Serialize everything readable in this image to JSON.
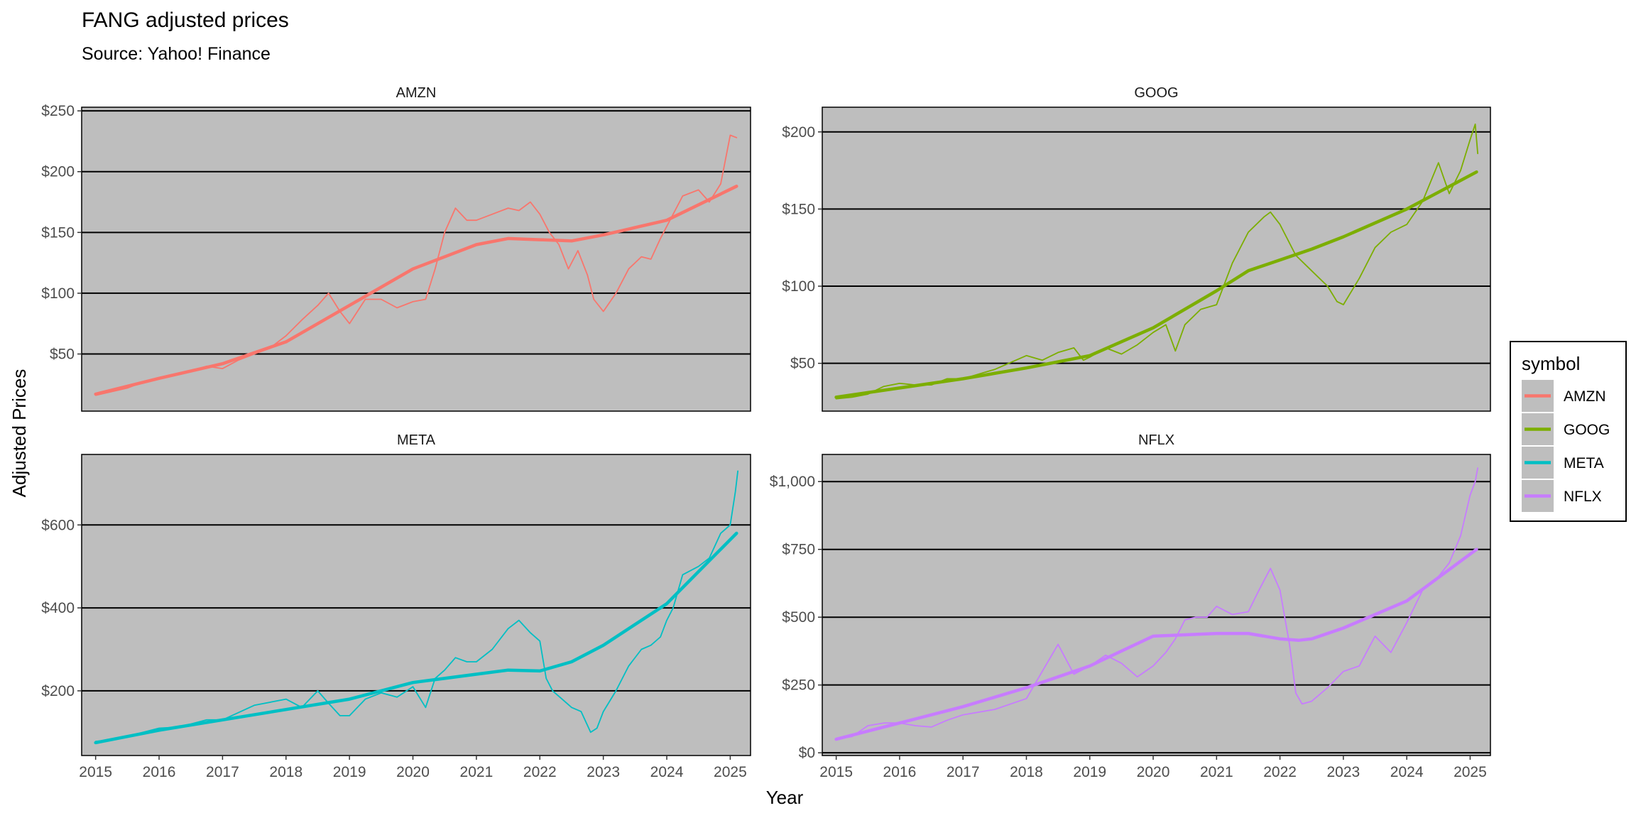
{
  "title": "FANG adjusted prices",
  "subtitle": "Source: Yahoo! Finance",
  "xlabel": "Year",
  "ylabel": "Adjusted Prices",
  "legend": {
    "title": "symbol",
    "placement": "right",
    "items": [
      {
        "label": "AMZN",
        "color": "#F8766D"
      },
      {
        "label": "GOOG",
        "color": "#7CAE00"
      },
      {
        "label": "META",
        "color": "#00BFC4"
      },
      {
        "label": "NFLX",
        "color": "#C77CFF"
      }
    ]
  },
  "colors": {
    "panel_bg": "#BEBEBE",
    "grid": "#000000"
  },
  "chart_data": [
    {
      "type": "line",
      "facet": "AMZN",
      "color": "#F8766D",
      "xlim": [
        2014.78,
        2025.32
      ],
      "ylim": [
        3,
        253
      ],
      "yticks": [
        50,
        100,
        150,
        200,
        250
      ],
      "ytick_labels": [
        "$50",
        "$100",
        "$150",
        "$200",
        "$250"
      ],
      "xticks": [
        2015,
        2016,
        2017,
        2018,
        2019,
        2020,
        2021,
        2022,
        2023,
        2024,
        2025
      ],
      "xtick_labels": [
        "2015",
        "2016",
        "2017",
        "2018",
        "2019",
        "2020",
        "2021",
        "2022",
        "2023",
        "2024",
        "2025"
      ],
      "show_x_axis": false,
      "series": [
        {
          "kind": "price",
          "x": [
            2015.0,
            2015.25,
            2015.5,
            2015.75,
            2016.0,
            2016.25,
            2016.5,
            2016.75,
            2017.0,
            2017.25,
            2017.5,
            2017.75,
            2018.0,
            2018.25,
            2018.5,
            2018.67,
            2018.85,
            2019.0,
            2019.25,
            2019.5,
            2019.75,
            2020.0,
            2020.2,
            2020.35,
            2020.5,
            2020.67,
            2020.85,
            2021.0,
            2021.25,
            2021.5,
            2021.67,
            2021.85,
            2022.0,
            2022.15,
            2022.3,
            2022.45,
            2022.6,
            2022.75,
            2022.85,
            2023.0,
            2023.2,
            2023.4,
            2023.6,
            2023.75,
            2023.9,
            2024.0,
            2024.25,
            2024.5,
            2024.67,
            2024.85,
            2025.0,
            2025.1
          ],
          "y": [
            16,
            19,
            22,
            27,
            30,
            33,
            36,
            40,
            38,
            45,
            50,
            55,
            65,
            78,
            90,
            100,
            85,
            75,
            95,
            95,
            88,
            93,
            95,
            120,
            150,
            170,
            160,
            160,
            165,
            170,
            168,
            175,
            165,
            150,
            140,
            120,
            135,
            115,
            95,
            85,
            100,
            120,
            130,
            128,
            145,
            155,
            180,
            185,
            175,
            190,
            230,
            228
          ]
        },
        {
          "kind": "trend",
          "x": [
            2015.0,
            2016.0,
            2017.0,
            2018.0,
            2019.0,
            2020.0,
            2021.0,
            2021.5,
            2022.0,
            2022.5,
            2023.0,
            2024.0,
            2025.1
          ],
          "y": [
            17,
            30,
            42,
            60,
            90,
            120,
            140,
            145,
            144,
            143,
            148,
            160,
            188
          ]
        }
      ]
    },
    {
      "type": "line",
      "facet": "GOOG",
      "color": "#7CAE00",
      "xlim": [
        2014.78,
        2025.32
      ],
      "ylim": [
        19,
        216
      ],
      "yticks": [
        50,
        100,
        150,
        200
      ],
      "ytick_labels": [
        "$50",
        "$100",
        "$150",
        "$200"
      ],
      "xticks": [
        2015,
        2016,
        2017,
        2018,
        2019,
        2020,
        2021,
        2022,
        2023,
        2024,
        2025
      ],
      "xtick_labels": [
        "2015",
        "2016",
        "2017",
        "2018",
        "2019",
        "2020",
        "2021",
        "2022",
        "2023",
        "2024",
        "2025"
      ],
      "show_x_axis": false,
      "series": [
        {
          "kind": "price",
          "x": [
            2015.0,
            2015.25,
            2015.5,
            2015.75,
            2016.0,
            2016.25,
            2016.5,
            2016.75,
            2017.0,
            2017.5,
            2018.0,
            2018.25,
            2018.5,
            2018.75,
            2018.9,
            2019.0,
            2019.25,
            2019.5,
            2019.75,
            2020.0,
            2020.2,
            2020.35,
            2020.5,
            2020.75,
            2021.0,
            2021.25,
            2021.5,
            2021.75,
            2021.85,
            2022.0,
            2022.25,
            2022.5,
            2022.75,
            2022.9,
            2023.0,
            2023.25,
            2023.5,
            2023.75,
            2024.0,
            2024.25,
            2024.5,
            2024.67,
            2024.85,
            2025.0,
            2025.08,
            2025.12
          ],
          "y": [
            27,
            28,
            30,
            35,
            37,
            36,
            36,
            40,
            40,
            46,
            55,
            52,
            57,
            60,
            52,
            54,
            60,
            56,
            62,
            70,
            75,
            58,
            75,
            85,
            88,
            115,
            135,
            145,
            148,
            140,
            120,
            110,
            100,
            90,
            88,
            105,
            125,
            135,
            140,
            155,
            180,
            160,
            175,
            195,
            205,
            186
          ]
        },
        {
          "kind": "trend",
          "x": [
            2015.0,
            2016.0,
            2017.0,
            2018.0,
            2019.0,
            2020.0,
            2021.0,
            2021.5,
            2022.0,
            2022.5,
            2023.0,
            2024.0,
            2025.1
          ],
          "y": [
            28,
            34,
            40,
            47,
            55,
            73,
            97,
            110,
            117,
            124,
            132,
            150,
            174
          ]
        }
      ]
    },
    {
      "type": "line",
      "facet": "META",
      "color": "#00BFC4",
      "xlim": [
        2014.78,
        2025.32
      ],
      "ylim": [
        44,
        770
      ],
      "yticks": [
        200,
        400,
        600
      ],
      "ytick_labels": [
        "$200",
        "$400",
        "$600"
      ],
      "xticks": [
        2015,
        2016,
        2017,
        2018,
        2019,
        2020,
        2021,
        2022,
        2023,
        2024,
        2025
      ],
      "xtick_labels": [
        "2015",
        "2016",
        "2017",
        "2018",
        "2019",
        "2020",
        "2021",
        "2022",
        "2023",
        "2024",
        "2025"
      ],
      "show_x_axis": true,
      "series": [
        {
          "kind": "price",
          "x": [
            2015.0,
            2015.25,
            2015.5,
            2015.75,
            2016.0,
            2016.25,
            2016.5,
            2016.75,
            2017.0,
            2017.5,
            2018.0,
            2018.25,
            2018.5,
            2018.67,
            2018.85,
            2019.0,
            2019.25,
            2019.5,
            2019.75,
            2020.0,
            2020.2,
            2020.35,
            2020.5,
            2020.67,
            2020.85,
            2021.0,
            2021.25,
            2021.5,
            2021.67,
            2021.85,
            2022.0,
            2022.1,
            2022.2,
            2022.35,
            2022.5,
            2022.65,
            2022.8,
            2022.9,
            2023.0,
            2023.2,
            2023.4,
            2023.6,
            2023.75,
            2023.9,
            2024.0,
            2024.1,
            2024.25,
            2024.5,
            2024.67,
            2024.85,
            2025.0,
            2025.08,
            2025.12
          ],
          "y": [
            78,
            82,
            90,
            100,
            110,
            112,
            120,
            130,
            130,
            165,
            180,
            160,
            200,
            170,
            140,
            140,
            180,
            195,
            185,
            210,
            160,
            230,
            250,
            280,
            270,
            270,
            300,
            350,
            370,
            340,
            320,
            230,
            200,
            180,
            160,
            150,
            100,
            110,
            150,
            200,
            260,
            300,
            310,
            330,
            370,
            400,
            480,
            500,
            520,
            580,
            600,
            680,
            730
          ]
        },
        {
          "kind": "trend",
          "x": [
            2015.0,
            2016.0,
            2017.0,
            2018.0,
            2019.0,
            2020.0,
            2021.0,
            2021.5,
            2022.0,
            2022.5,
            2023.0,
            2024.0,
            2025.1
          ],
          "y": [
            75,
            105,
            130,
            155,
            180,
            220,
            240,
            250,
            248,
            270,
            310,
            410,
            580
          ]
        }
      ]
    },
    {
      "type": "line",
      "facet": "NFLX",
      "color": "#C77CFF",
      "xlim": [
        2014.78,
        2025.32
      ],
      "ylim": [
        -10,
        1100
      ],
      "yticks": [
        0,
        250,
        500,
        750,
        1000
      ],
      "ytick_labels": [
        "$0",
        "$250",
        "$500",
        "$750",
        "$1,000"
      ],
      "xticks": [
        2015,
        2016,
        2017,
        2018,
        2019,
        2020,
        2021,
        2022,
        2023,
        2024,
        2025
      ],
      "xtick_labels": [
        "2015",
        "2016",
        "2017",
        "2018",
        "2019",
        "2020",
        "2021",
        "2022",
        "2023",
        "2024",
        "2025"
      ],
      "show_x_axis": true,
      "series": [
        {
          "kind": "price",
          "x": [
            2015.0,
            2015.25,
            2015.5,
            2015.75,
            2016.0,
            2016.25,
            2016.5,
            2016.75,
            2017.0,
            2017.5,
            2018.0,
            2018.25,
            2018.5,
            2018.75,
            2019.0,
            2019.25,
            2019.5,
            2019.75,
            2020.0,
            2020.2,
            2020.35,
            2020.5,
            2020.67,
            2020.85,
            2021.0,
            2021.25,
            2021.5,
            2021.67,
            2021.85,
            2022.0,
            2022.15,
            2022.25,
            2022.35,
            2022.5,
            2022.75,
            2023.0,
            2023.25,
            2023.5,
            2023.75,
            2024.0,
            2024.25,
            2024.5,
            2024.67,
            2024.85,
            2025.0,
            2025.08,
            2025.12
          ],
          "y": [
            50,
            60,
            100,
            110,
            110,
            100,
            95,
            120,
            140,
            160,
            200,
            300,
            400,
            290,
            320,
            360,
            330,
            280,
            320,
            370,
            420,
            490,
            500,
            500,
            540,
            510,
            520,
            600,
            680,
            600,
            400,
            220,
            180,
            190,
            240,
            300,
            320,
            430,
            370,
            480,
            600,
            650,
            700,
            800,
            950,
            1000,
            1050
          ]
        },
        {
          "kind": "trend",
          "x": [
            2015.0,
            2016.0,
            2017.0,
            2018.0,
            2019.0,
            2020.0,
            2021.0,
            2021.5,
            2022.0,
            2022.3,
            2022.5,
            2023.0,
            2024.0,
            2025.1
          ],
          "y": [
            50,
            110,
            170,
            240,
            320,
            430,
            440,
            440,
            420,
            415,
            420,
            460,
            560,
            750
          ]
        }
      ]
    }
  ]
}
